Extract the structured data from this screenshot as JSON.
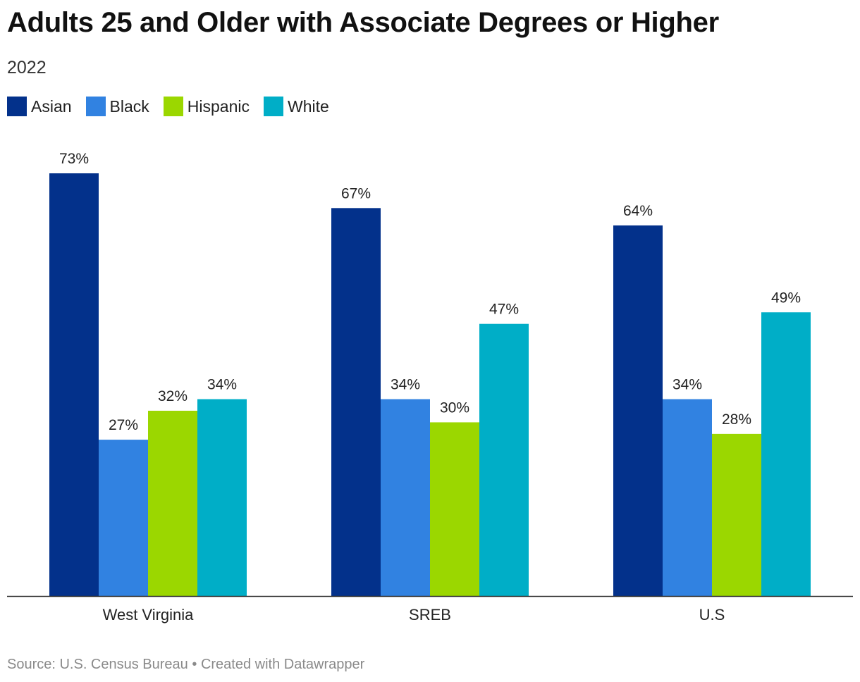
{
  "header": {
    "title": "Adults 25 and Older with Associate Degrees or Higher",
    "subtitle": "2022"
  },
  "footer": {
    "source": "Source: U.S. Census Bureau",
    "separator": "•",
    "credit": "Created with Datawrapper"
  },
  "chart_data": {
    "type": "bar",
    "categories": [
      "West Virginia",
      "SREB",
      "U.S"
    ],
    "series": [
      {
        "name": "Asian",
        "color": "#03318b",
        "values": [
          73,
          67,
          64
        ]
      },
      {
        "name": "Black",
        "color": "#3182e1",
        "values": [
          27,
          34,
          34
        ]
      },
      {
        "name": "Hispanic",
        "color": "#9bd700",
        "values": [
          32,
          30,
          28
        ]
      },
      {
        "name": "White",
        "color": "#00aec7",
        "values": [
          34,
          47,
          49
        ]
      }
    ],
    "value_suffix": "%",
    "ylim": [
      0,
      73
    ],
    "grid": false,
    "legend": "top-left",
    "xlabel": "",
    "ylabel": ""
  }
}
